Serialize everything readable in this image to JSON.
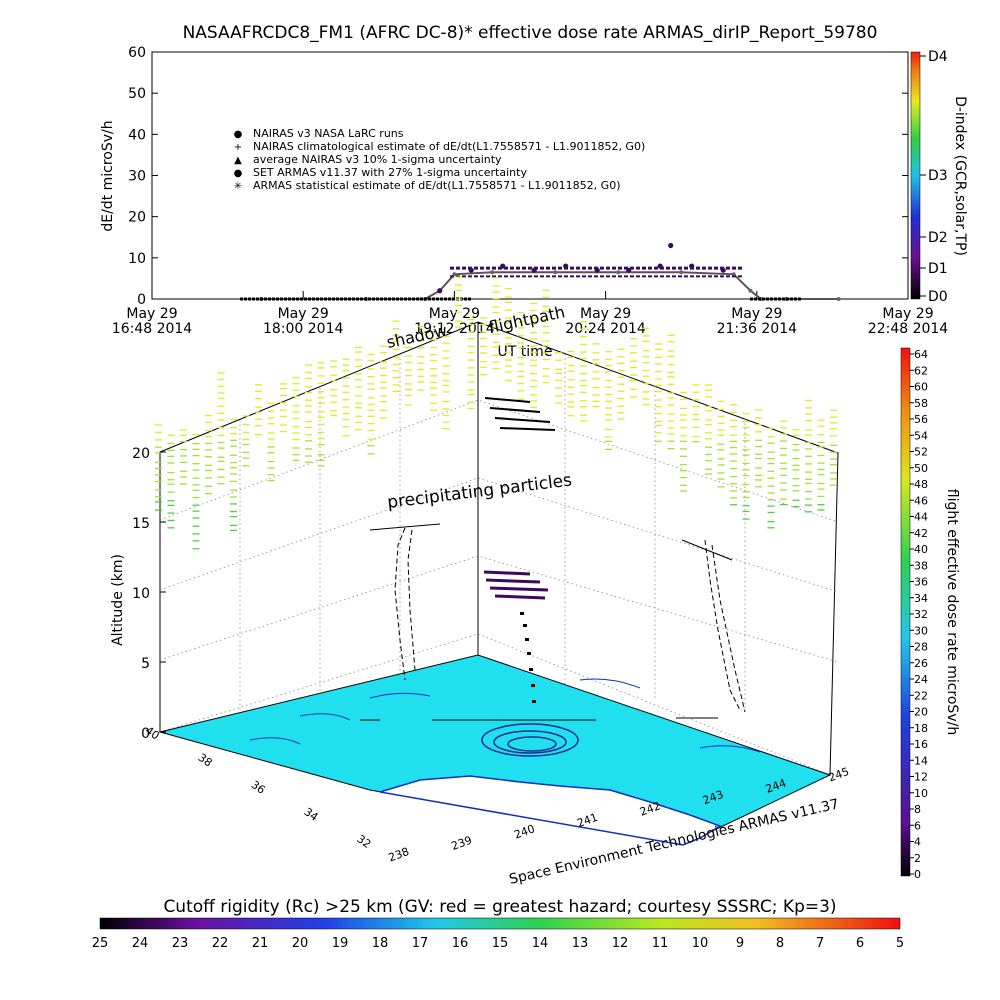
{
  "colors": {
    "background": "#ffffff",
    "surface": "#20e0f0",
    "land_edge": "#1030c0",
    "axis": "#000000",
    "dose_dark": "#3c0a5a",
    "dose_green": "#50d040",
    "dose_yellow": "#d8f020"
  },
  "chart_data": [
    {
      "type": "scatter",
      "title": "NASAAFRCDC8_FM1 (AFRC DC-8)* effective dose rate ARMAS_dirIP_Report_59780",
      "xlabel": "UT time",
      "ylabel": "dE/dt microSv/h",
      "right_axis_label": "D-index (GCR,solar,TP)",
      "right_axis_ticks": [
        "D4",
        "D3",
        "D2",
        "D1",
        "D0"
      ],
      "ylim": [
        0,
        60
      ],
      "yticks": [
        "0",
        "10",
        "20",
        "30",
        "40",
        "50",
        "60"
      ],
      "xticks": [
        {
          "date": "May 29",
          "time": "16:48 2014"
        },
        {
          "date": "May 29",
          "time": "18:00 2014"
        },
        {
          "date": "May 29",
          "time": "19:12 2014"
        },
        {
          "date": "May 29",
          "time": "20:24 2014"
        },
        {
          "date": "May 29",
          "time": "21:36 2014"
        },
        {
          "date": "May 29",
          "time": "22:48 2014"
        }
      ],
      "legend": [
        "NAIRAS v3 NASA LaRC runs",
        "NAIRAS climatological estimate of dE/dt(L1.7558571 - L1.9011852, G0)",
        "average NAIRAS v3 10% 1-sigma uncertainty",
        "SET ARMAS v11.37 with 27% 1-sigma uncertainty",
        "ARMAS statistical estimate of dE/dt(L1.7558571 - L1.9011852, G0)"
      ],
      "legend_placement": "upper-left",
      "series": [
        {
          "name": "NAIRAS v3 NASA LaRC runs",
          "x": [
            "17:40",
            "18:30",
            "18:58",
            "19:05",
            "19:12",
            "19:30",
            "20:00",
            "20:30",
            "21:00",
            "21:25",
            "21:33",
            "21:38",
            "21:50",
            "22:15"
          ],
          "values": [
            0,
            0,
            0,
            2,
            6,
            6.5,
            6.5,
            6.5,
            6.5,
            6,
            2,
            0,
            0,
            0
          ]
        },
        {
          "name": "SET ARMAS v11.37 with 27% 1-sigma uncertainty",
          "x": [
            "19:05",
            "19:20",
            "19:35",
            "19:50",
            "20:05",
            "20:20",
            "20:35",
            "20:50",
            "20:55",
            "21:05",
            "21:20"
          ],
          "values": [
            2,
            7,
            8,
            7,
            8,
            7,
            7,
            8,
            13,
            8,
            7
          ]
        }
      ]
    },
    {
      "type": "scatter",
      "subtitle": "Space Environment Technologies ARMAS v11.37",
      "ylabel": "Altitude (km)",
      "zticks": [
        "0",
        "5",
        "10",
        "15",
        "20"
      ],
      "lat_ticks": [
        "40",
        "38",
        "36",
        "34",
        "32"
      ],
      "lon_ticks": [
        "238",
        "239",
        "240",
        "241",
        "242",
        "243",
        "244",
        "245"
      ],
      "annotations": [
        "shadow",
        "flightpath",
        "precipitating particles"
      ],
      "dose_colorbar_label": "flight effective dose rate microSv/h",
      "dose_colorbar_ticks": [
        "0",
        "2",
        "4",
        "6",
        "8",
        "10",
        "12",
        "14",
        "16",
        "18",
        "20",
        "22",
        "24",
        "26",
        "28",
        "30",
        "32",
        "34",
        "36",
        "38",
        "40",
        "42",
        "44",
        "46",
        "48",
        "50",
        "52",
        "54",
        "56",
        "58",
        "60",
        "62",
        "64"
      ],
      "rc_colorbar_label": "Cutoff rigidity (Rc) >25 km (GV: red = greatest hazard; courtesy SSSRC; Kp=3)",
      "rc_colorbar_ticks": [
        "25",
        "24",
        "23",
        "22",
        "21",
        "20",
        "19",
        "18",
        "17",
        "16",
        "15",
        "14",
        "13",
        "12",
        "11",
        "10",
        "9",
        "8",
        "7",
        "6",
        "5"
      ]
    }
  ]
}
